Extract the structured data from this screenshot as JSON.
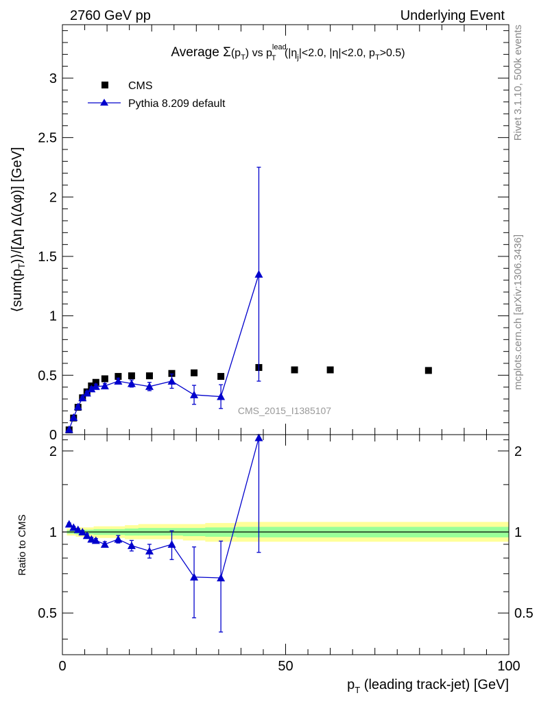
{
  "header": {
    "left": "2760 GeV pp",
    "right": "Underlying Event"
  },
  "side_labels": {
    "rivet": "Rivet 3.1.10,  500k events",
    "mcplots": "mcplots.cern.ch [arXiv:1306.3436]"
  },
  "watermark": "CMS_2015_I1385107",
  "chart_data": [
    {
      "type": "scatter",
      "title": {
        "prefix": "Average ",
        "sigma": "Σ",
        "pt_open": "(p",
        "pt_sub": "T",
        "pt_close": ")",
        "vs": " vs p",
        "lead_sup": "lead",
        "lead_sub": "T",
        "cut1_open": " (|η",
        "cut1_sub": "j",
        "cut1_close": "|<2.0, |η|<2.0, p",
        "cut2_sub": "T",
        "cut2_close": ">0.5)"
      },
      "ylabel": {
        "part1": "⟨sum(p",
        "sub": "T",
        "part2": ")⟩/[Δη Δ(Δφ)] [GeV]"
      },
      "xlim": [
        0,
        100
      ],
      "ylim": [
        0,
        3.45
      ],
      "yticks": [
        0,
        0.5,
        1,
        1.5,
        2,
        2.5,
        3
      ],
      "ytick_labels": [
        "0",
        "0.5",
        "1",
        "1.5",
        "2",
        "2.5",
        "3"
      ],
      "legend_position": "top-left",
      "series": [
        {
          "name": "CMS",
          "color": "#000000",
          "marker": "square",
          "x": [
            1.5,
            2.5,
            3.5,
            4.5,
            5.5,
            6.5,
            7.5,
            9.5,
            12.5,
            15.5,
            19.5,
            24.5,
            29.5,
            35.5,
            44.0,
            52.0,
            60.0,
            82.0
          ],
          "y": [
            0.04,
            0.14,
            0.23,
            0.31,
            0.36,
            0.41,
            0.44,
            0.47,
            0.49,
            0.495,
            0.495,
            0.515,
            0.52,
            0.49,
            0.565,
            0.545,
            0.545,
            0.54
          ]
        },
        {
          "name": "Pythia 8.209 default",
          "color": "#0000cc",
          "marker": "triangle",
          "x": [
            1.5,
            2.5,
            3.5,
            4.5,
            5.5,
            6.5,
            7.5,
            9.5,
            12.5,
            15.5,
            19.5,
            24.5,
            29.5,
            35.5,
            44.0
          ],
          "y": [
            0.043,
            0.145,
            0.235,
            0.31,
            0.35,
            0.385,
            0.405,
            0.41,
            0.45,
            0.43,
            0.405,
            0.45,
            0.335,
            0.32,
            1.35
          ],
          "yerr": [
            0.005,
            0.008,
            0.01,
            0.012,
            0.015,
            0.018,
            0.02,
            0.02,
            0.025,
            0.03,
            0.035,
            0.06,
            0.08,
            0.1,
            0.9
          ]
        }
      ]
    },
    {
      "type": "scatter",
      "ylabel": "Ratio to CMS",
      "xlabel": {
        "main": "p",
        "sub": "T",
        "rest": " (leading track-jet) [GeV]"
      },
      "xlim": [
        0,
        100
      ],
      "ylim": [
        0.35,
        2.3
      ],
      "ylog": true,
      "xticks": [
        0,
        50,
        100
      ],
      "xtick_labels": [
        "0",
        "50",
        "100"
      ],
      "yticks": [
        0.5,
        1,
        2
      ],
      "ytick_labels": [
        "0.5",
        "1",
        "2"
      ],
      "reference_line": 1,
      "bands": {
        "yellow_color": "#ffff99",
        "green_color": "#99ff99",
        "x_edges": [
          1,
          2,
          3,
          4,
          5,
          6,
          7,
          8,
          11,
          14,
          17,
          22,
          27,
          32,
          39,
          49,
          55,
          65,
          100
        ],
        "yellow_lo": [
          0.97,
          0.97,
          0.96,
          0.96,
          0.96,
          0.96,
          0.95,
          0.95,
          0.95,
          0.94,
          0.94,
          0.94,
          0.93,
          0.92,
          0.92,
          0.92,
          0.92,
          0.92
        ],
        "yellow_hi": [
          1.03,
          1.03,
          1.04,
          1.04,
          1.04,
          1.04,
          1.05,
          1.05,
          1.05,
          1.06,
          1.07,
          1.07,
          1.07,
          1.08,
          1.09,
          1.09,
          1.09,
          1.09
        ],
        "green_lo": [
          0.985,
          0.985,
          0.98,
          0.98,
          0.98,
          0.98,
          0.975,
          0.975,
          0.975,
          0.97,
          0.97,
          0.97,
          0.965,
          0.96,
          0.955,
          0.955,
          0.955,
          0.955
        ],
        "green_hi": [
          1.015,
          1.015,
          1.02,
          1.02,
          1.02,
          1.02,
          1.025,
          1.025,
          1.025,
          1.03,
          1.035,
          1.035,
          1.035,
          1.04,
          1.045,
          1.045,
          1.045,
          1.045
        ]
      },
      "series": [
        {
          "name": "Pythia 8.209 default",
          "color": "#0000cc",
          "marker": "triangle",
          "x": [
            1.5,
            2.5,
            3.5,
            4.5,
            5.5,
            6.5,
            7.5,
            9.5,
            12.5,
            15.5,
            19.5,
            24.5,
            29.5,
            35.5,
            44.0
          ],
          "y": [
            1.07,
            1.04,
            1.02,
            1.0,
            0.97,
            0.94,
            0.93,
            0.9,
            0.94,
            0.89,
            0.85,
            0.9,
            0.68,
            0.675,
            2.24
          ],
          "yerr": [
            0.01,
            0.01,
            0.01,
            0.012,
            0.015,
            0.015,
            0.015,
            0.02,
            0.03,
            0.04,
            0.05,
            0.11,
            0.2,
            0.25,
            1.4
          ]
        }
      ]
    }
  ]
}
